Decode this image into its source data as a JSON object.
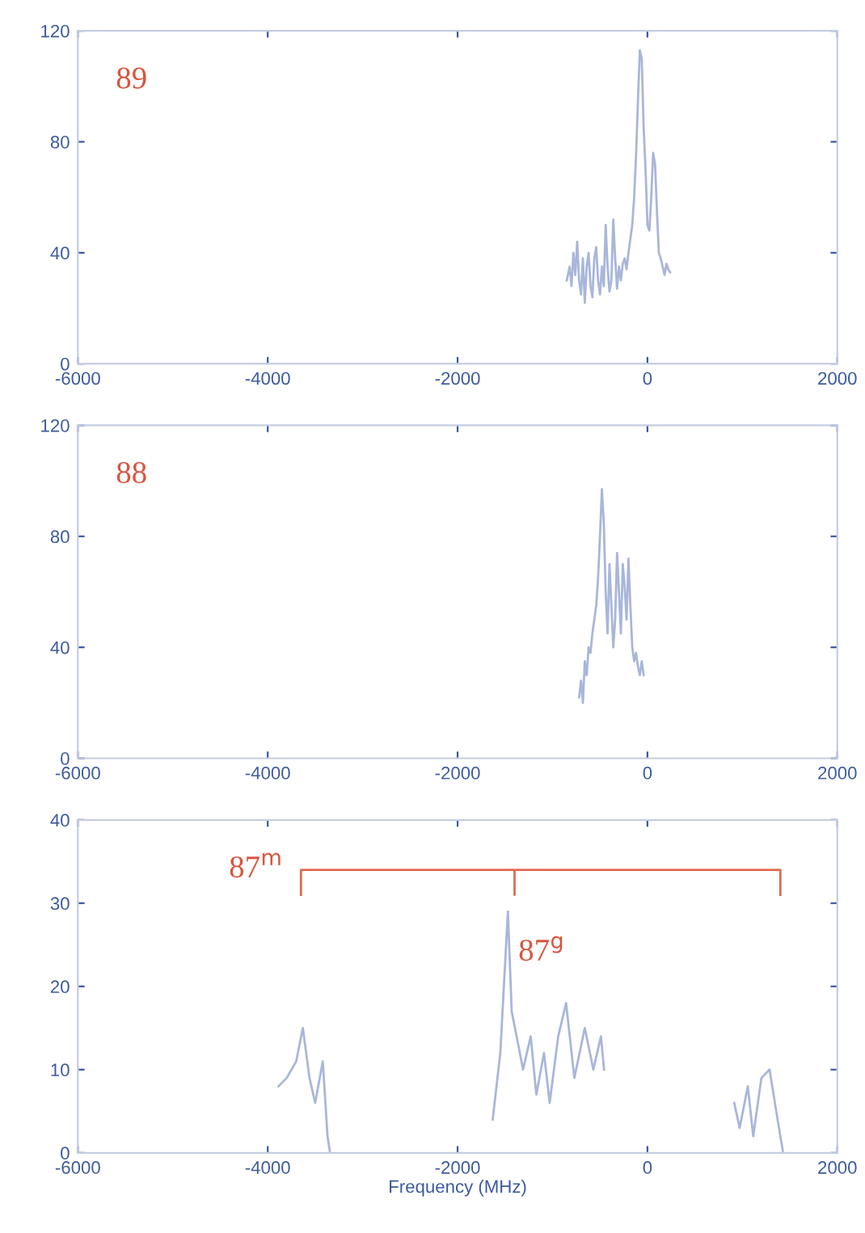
{
  "chart_data": [
    {
      "type": "line",
      "annotations": [
        "89"
      ],
      "xlim": [
        -6000,
        2000
      ],
      "xticks": [
        -6000,
        -4000,
        -2000,
        0,
        2000
      ],
      "ylim": [
        0,
        120
      ],
      "yticks": [
        0,
        40,
        80,
        120
      ],
      "series": [
        {
          "color": "#a9b6da",
          "x": [
            -850,
            -820,
            -800,
            -780,
            -760,
            -740,
            -720,
            -700,
            -680,
            -660,
            -640,
            -620,
            -600,
            -580,
            -560,
            -540,
            -520,
            -500,
            -480,
            -460,
            -440,
            -420,
            -400,
            -380,
            -360,
            -340,
            -320,
            -300,
            -280,
            -260,
            -240,
            -220,
            -200,
            -180,
            -160,
            -140,
            -120,
            -100,
            -80,
            -60,
            -40,
            -20,
            0,
            20,
            40,
            60,
            80,
            100,
            120,
            140,
            160,
            180,
            200,
            220,
            240
          ],
          "values": [
            30,
            35,
            28,
            40,
            32,
            44,
            30,
            25,
            38,
            22,
            35,
            40,
            28,
            24,
            38,
            42,
            30,
            25,
            35,
            28,
            50,
            35,
            26,
            30,
            52,
            38,
            27,
            35,
            30,
            36,
            38,
            34,
            40,
            45,
            50,
            60,
            75,
            95,
            113,
            110,
            85,
            70,
            50,
            48,
            60,
            76,
            72,
            55,
            40,
            38,
            35,
            32,
            36,
            34,
            33
          ]
        }
      ]
    },
    {
      "type": "line",
      "annotations": [
        "88"
      ],
      "xlim": [
        -6000,
        2000
      ],
      "xticks": [
        -6000,
        -4000,
        -2000,
        0,
        2000
      ],
      "ylim": [
        0,
        120
      ],
      "yticks": [
        0,
        40,
        80,
        120
      ],
      "series": [
        {
          "color": "#a9b6da",
          "x": [
            -720,
            -700,
            -680,
            -660,
            -640,
            -620,
            -600,
            -580,
            -560,
            -540,
            -520,
            -500,
            -480,
            -460,
            -440,
            -420,
            -400,
            -380,
            -360,
            -340,
            -320,
            -300,
            -280,
            -260,
            -240,
            -220,
            -200,
            -180,
            -160,
            -140,
            -120,
            -100,
            -80,
            -60,
            -40
          ],
          "values": [
            22,
            28,
            20,
            35,
            30,
            40,
            38,
            45,
            50,
            55,
            65,
            80,
            97,
            85,
            60,
            45,
            70,
            55,
            40,
            50,
            74,
            60,
            45,
            70,
            62,
            50,
            72,
            55,
            40,
            35,
            38,
            33,
            30,
            35,
            30
          ]
        }
      ]
    },
    {
      "type": "line",
      "xlabel": "Frequency (MHz)",
      "annotations": [
        {
          "text": "87$^{m}$",
          "x": -3650,
          "y": 34
        },
        "87$^{g}$"
      ],
      "xlim": [
        -6000,
        2000
      ],
      "xticks": [
        -6000,
        -4000,
        -2000,
        0,
        2000
      ],
      "ylim": [
        0,
        40
      ],
      "yticks": [
        0,
        10,
        20,
        30,
        40
      ],
      "series": [
        {
          "color": "#a9b6da",
          "x": [
            -3886,
            -3800,
            -3700,
            -3630,
            -3560,
            -3500,
            -3420,
            -3370,
            -3343
          ],
          "values": [
            8,
            9,
            11,
            15,
            9,
            6,
            11,
            2,
            0
          ]
        },
        {
          "color": "#a9b6da",
          "x": [
            -1630,
            -1550,
            -1470,
            -1430,
            -1310,
            -1230,
            -1170,
            -1090,
            -1030,
            -940,
            -857,
            -770,
            -660,
            -570,
            -490,
            -457
          ],
          "values": [
            4,
            12,
            29,
            17,
            10,
            14,
            7,
            12,
            6,
            14,
            18,
            9,
            15,
            10,
            14,
            10
          ]
        },
        {
          "color": "#a9b6da",
          "x": [
            914,
            971,
            1057,
            1114,
            1200,
            1286,
            1371,
            1429
          ],
          "values": [
            6,
            3,
            8,
            2,
            9,
            10,
            4,
            0
          ]
        },
        {
          "color": "#e06a50",
          "x": [
            -3650,
            -3650,
            -1400,
            -1400,
            -1400,
            1400,
            1400
          ],
          "values": [
            31,
            34,
            34,
            31,
            34,
            34,
            31
          ]
        }
      ]
    }
  ]
}
